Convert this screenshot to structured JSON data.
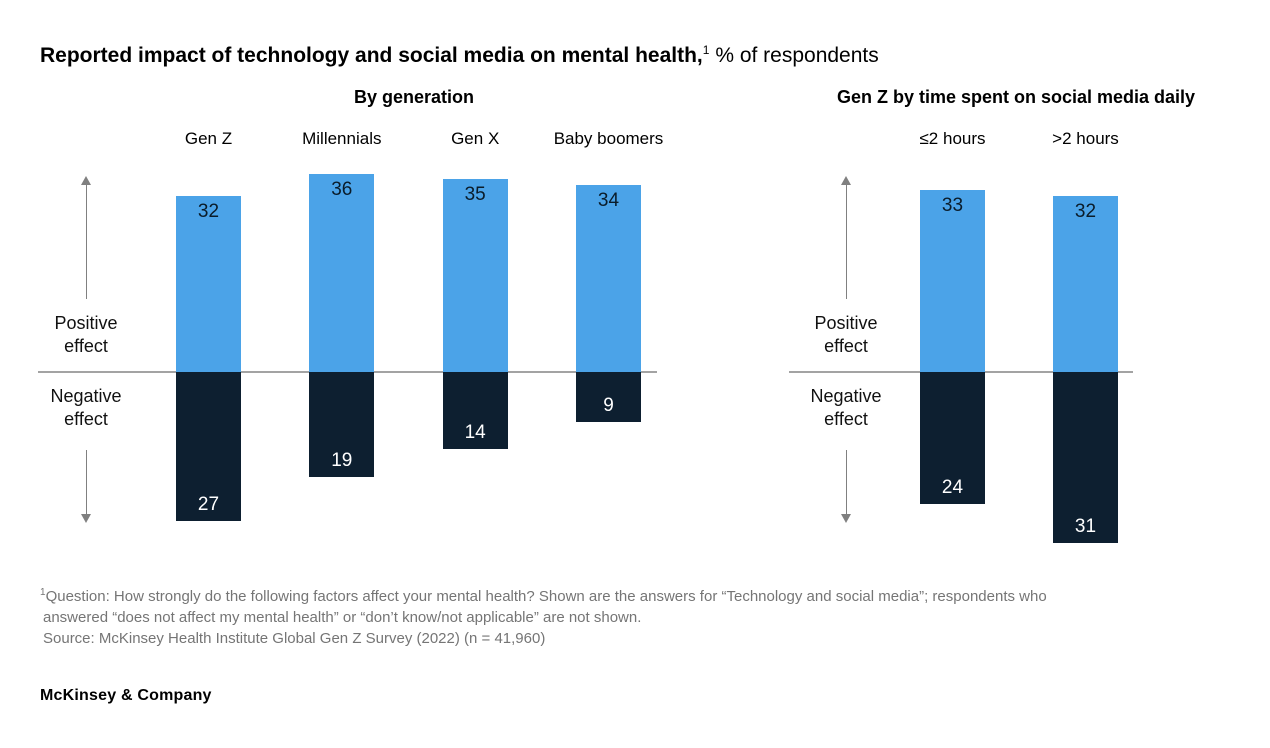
{
  "page": {
    "title_bold": "Reported impact of technology and social media on mental health,",
    "title_superscript": "1",
    "title_rest": "% of respondents",
    "brand": "McKinsey & Company"
  },
  "axis": {
    "positive": [
      "Positive",
      "effect"
    ],
    "negative": [
      "Negative",
      "effect"
    ]
  },
  "colors": {
    "positive_bar": "#4BA3E8",
    "negative_bar": "#0D1F30",
    "positive_bar_label": "#0A1C2A",
    "negative_bar_label": "#FFFFFF",
    "zero_line": "#A3A3A3",
    "arrow": "#808080",
    "footnote_text": "#757575"
  },
  "footnote": {
    "marker": "1",
    "line1": "Question: How strongly do the following factors affect your mental health? Shown are the answers for “Technology and social media”; respondents who",
    "line2": "answered “does not affect my mental health” or “don’t know/not applicable” are not shown.",
    "source": "Source: McKinsey Health Institute Global Gen Z Survey (2022) (n = 41,960)"
  },
  "chart_data": [
    {
      "type": "bar",
      "title": "By generation",
      "categories": [
        "Gen Z",
        "Millennials",
        "Gen X",
        "Baby boomers"
      ],
      "series": [
        {
          "name": "Positive effect",
          "direction": "up",
          "values": [
            32,
            36,
            35,
            34
          ]
        },
        {
          "name": "Negative effect",
          "direction": "down",
          "values": [
            27,
            19,
            14,
            9
          ]
        }
      ],
      "unit": "% of respondents",
      "baseline": 0,
      "grid": false,
      "legend_position": "none"
    },
    {
      "type": "bar",
      "title": "Gen Z by time spent on social media daily",
      "categories": [
        "≤2 hours",
        ">2 hours"
      ],
      "series": [
        {
          "name": "Positive effect",
          "direction": "up",
          "values": [
            33,
            32
          ]
        },
        {
          "name": "Negative effect",
          "direction": "down",
          "values": [
            24,
            31
          ]
        }
      ],
      "unit": "% of respondents",
      "baseline": 0,
      "grid": false,
      "legend_position": "none"
    }
  ]
}
